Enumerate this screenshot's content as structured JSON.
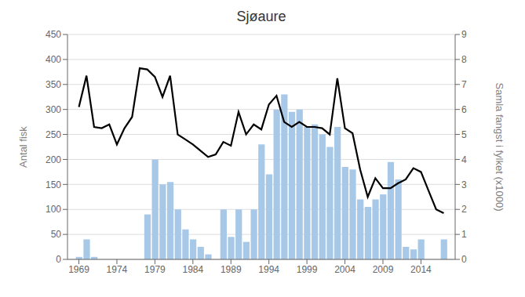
{
  "chart_data": {
    "type": "bar",
    "title": "Sjøaure",
    "ylabel": "Antal fisk",
    "y2label": "Samla fangst i fylket (x1000)",
    "x": [
      1969,
      1970,
      1971,
      1972,
      1973,
      1974,
      1975,
      1976,
      1977,
      1978,
      1979,
      1980,
      1981,
      1982,
      1983,
      1984,
      1985,
      1986,
      1987,
      1988,
      1989,
      1990,
      1991,
      1992,
      1993,
      1994,
      1995,
      1996,
      1997,
      1998,
      1999,
      2000,
      2001,
      2002,
      2003,
      2004,
      2005,
      2006,
      2007,
      2008,
      2009,
      2010,
      2011,
      2012,
      2013,
      2014,
      2015,
      2016,
      2017
    ],
    "series": [
      {
        "type": "bar",
        "color": "#a8c8e8",
        "values": [
          5,
          40,
          5,
          0,
          0,
          0,
          0,
          0,
          0,
          90,
          200,
          150,
          155,
          100,
          60,
          40,
          25,
          10,
          0,
          100,
          45,
          100,
          35,
          100,
          230,
          170,
          300,
          330,
          295,
          300,
          265,
          270,
          250,
          225,
          265,
          185,
          180,
          120,
          105,
          120,
          130,
          195,
          160,
          25,
          20,
          40,
          0,
          0,
          40
        ]
      },
      {
        "type": "line",
        "color": "#000000",
        "axis": "y2",
        "values": [
          6.1,
          7.35,
          5.3,
          5.25,
          5.4,
          4.6,
          5.25,
          5.7,
          7.65,
          7.6,
          7.3,
          6.5,
          7.35,
          5.0,
          4.8,
          4.6,
          4.35,
          4.1,
          4.2,
          4.7,
          4.55,
          5.9,
          5.0,
          5.4,
          5.2,
          6.2,
          6.55,
          5.5,
          5.3,
          5.5,
          5.3,
          5.3,
          5.25,
          5.0,
          7.25,
          5.25,
          5.05,
          3.6,
          2.5,
          3.25,
          2.85,
          2.85,
          3.05,
          3.2,
          3.65,
          3.5,
          2.75,
          2.0,
          1.85
        ]
      }
    ],
    "xlim": [
      1967.5,
      2018.5
    ],
    "xticks": [
      1969,
      1974,
      1979,
      1984,
      1989,
      1994,
      1999,
      2004,
      2009,
      2014
    ],
    "ylim": [
      0,
      450
    ],
    "yticks": [
      0,
      50,
      100,
      150,
      200,
      250,
      300,
      350,
      400,
      450
    ],
    "y2lim": [
      0,
      9
    ],
    "y2ticks": [
      0,
      1,
      2,
      3,
      4,
      5,
      6,
      7,
      8,
      9
    ],
    "grid": true
  }
}
